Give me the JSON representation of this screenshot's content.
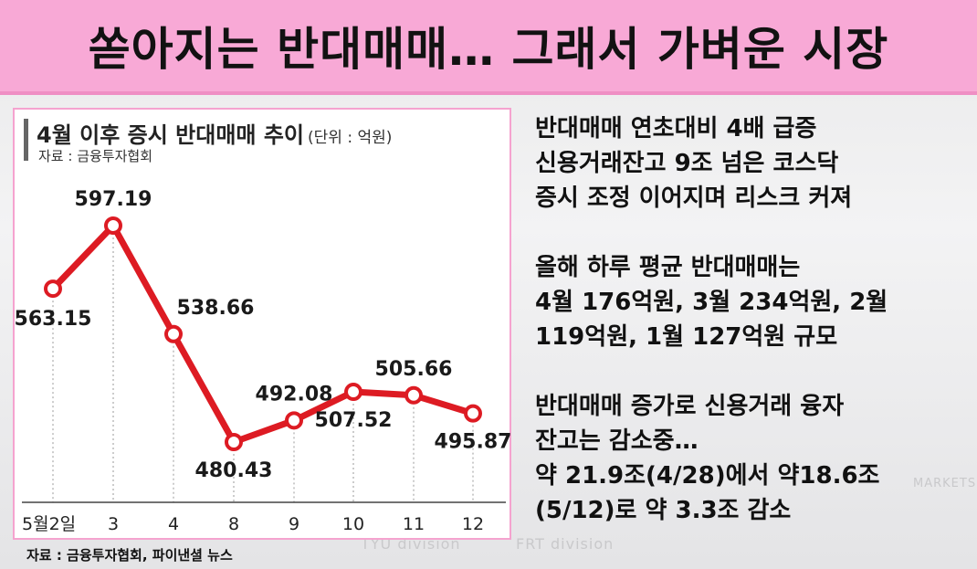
{
  "headline": "쏟아지는 반대매매… 그래서 가벼운 시장",
  "chart_data": {
    "type": "line",
    "title": "4월 이후 증시 반대매매 추이",
    "unit": "(단위 : 억원)",
    "source": "자료 : 금융투자협회",
    "categories": [
      "5월2일",
      "3",
      "4",
      "8",
      "9",
      "10",
      "11",
      "12"
    ],
    "values": [
      563.15,
      597.19,
      538.66,
      480.43,
      492.08,
      507.52,
      505.66,
      495.87
    ],
    "value_labels": [
      "563.15",
      "597.19",
      "538.66",
      "480.43",
      "492.08",
      "507.52",
      "505.66",
      "495.87"
    ],
    "xlabel": "",
    "ylabel": "",
    "grid": false,
    "colors": {
      "line": "#dd1b23",
      "marker_fill": "#ffffff"
    }
  },
  "footer_source": "자료 : 금융투자협회, 파이낸셜 뉴스",
  "bullets": [
    [
      "반대매매 연초대비 4배 급증",
      "신용거래잔고 9조 넘은 코스닥",
      "증시 조정 이어지며 리스크 커져"
    ],
    [
      "올해 하루 평균 반대매매는",
      "4월 176억원, 3월 234억원, 2월",
      "119억원, 1월 127억원 규모"
    ],
    [
      "반대매매 증가로 신용거래 융자",
      "잔고는 감소중…",
      "약 21.9조(4/28)에서 약18.6조",
      "(5/12)로  약 3.3조 감소"
    ]
  ],
  "background_text": [
    "TYU division",
    "FRT division",
    "MARKETS"
  ]
}
